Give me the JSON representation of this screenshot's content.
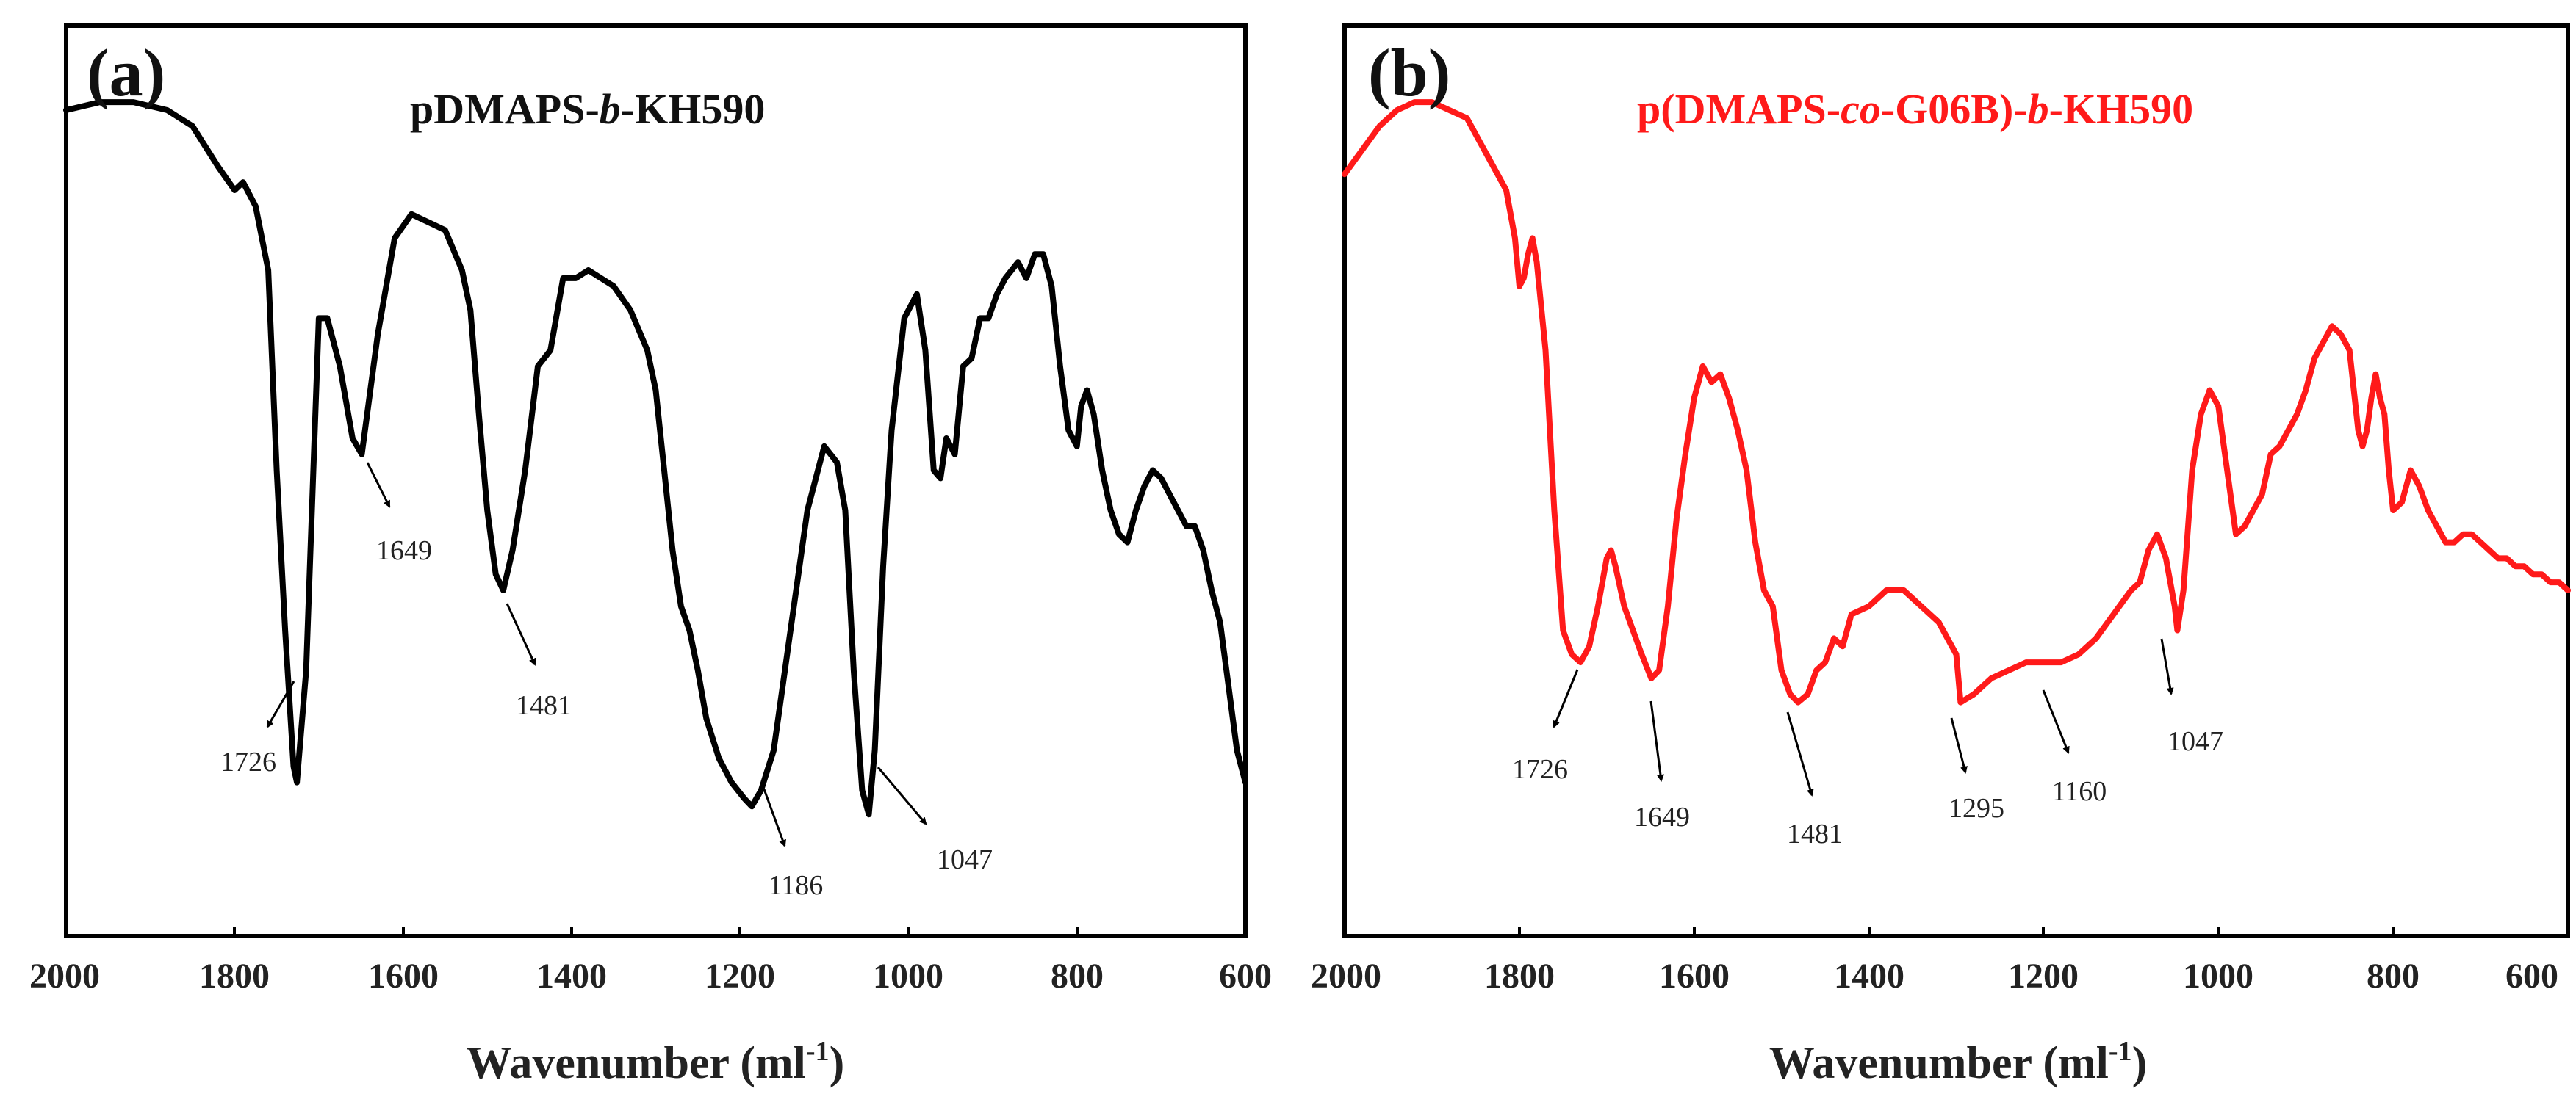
{
  "chart_data": [
    {
      "type": "line",
      "panel_label": "(a)",
      "title": {
        "pre": "pDMAPS-",
        "it": "b",
        "post": "-KH590"
      },
      "xlabel": "Wavenumber  (ml",
      "xlabel_sup": "-1",
      "xlabel_end": ")",
      "xlim": [
        2000,
        600
      ],
      "ylim": [
        0,
        100
      ],
      "x_ticks": [
        "2000",
        "1800",
        "1600",
        "1400",
        "1200",
        "1000",
        "800",
        "600"
      ],
      "color": "#000000",
      "series": [
        {
          "name": "pDMAPS-b-KH590",
          "x": [
            2000,
            1960,
            1920,
            1880,
            1850,
            1820,
            1800,
            1790,
            1775,
            1760,
            1750,
            1740,
            1730,
            1726,
            1715,
            1700,
            1690,
            1675,
            1660,
            1649,
            1630,
            1610,
            1590,
            1570,
            1550,
            1530,
            1520,
            1510,
            1500,
            1490,
            1481,
            1470,
            1455,
            1440,
            1425,
            1410,
            1395,
            1380,
            1365,
            1350,
            1330,
            1310,
            1300,
            1290,
            1280,
            1270,
            1260,
            1250,
            1240,
            1225,
            1210,
            1195,
            1186,
            1175,
            1160,
            1140,
            1120,
            1100,
            1085,
            1075,
            1065,
            1055,
            1047,
            1040,
            1030,
            1020,
            1005,
            990,
            980,
            970,
            962,
            955,
            945,
            935,
            925,
            915,
            905,
            895,
            885,
            870,
            860,
            850,
            840,
            830,
            820,
            810,
            800,
            795,
            788,
            780,
            770,
            760,
            750,
            740,
            730,
            720,
            710,
            700,
            690,
            680,
            670,
            660,
            650,
            640,
            630,
            620,
            610,
            600
          ],
          "y": [
            100,
            101,
            101,
            100,
            98,
            93,
            90,
            91,
            88,
            80,
            55,
            35,
            18,
            16,
            30,
            74,
            74,
            68,
            59,
            57,
            72,
            84,
            87,
            86,
            85,
            80,
            75,
            62,
            50,
            42,
            40,
            45,
            55,
            68,
            70,
            79,
            79,
            80,
            79,
            78,
            75,
            70,
            65,
            55,
            45,
            38,
            35,
            30,
            24,
            19,
            16,
            14,
            13,
            15,
            20,
            35,
            50,
            58,
            56,
            50,
            30,
            15,
            12,
            20,
            43,
            60,
            74,
            77,
            70,
            55,
            54,
            59,
            57,
            68,
            69,
            74,
            74,
            77,
            79,
            81,
            79,
            82,
            82,
            78,
            68,
            60,
            58,
            63,
            65,
            62,
            55,
            50,
            47,
            46,
            50,
            53,
            55,
            54,
            52,
            50,
            48,
            48,
            45,
            40,
            36,
            28,
            20,
            16
          ]
        }
      ],
      "annotations": [
        "1726",
        "1649",
        "1481",
        "1186",
        "1047"
      ]
    },
    {
      "type": "line",
      "panel_label": "(b)",
      "title": {
        "pre": "p(DMAPS-",
        "it1": "co",
        "mid": "-G06B)-",
        "it2": "b",
        "post": "-KH590"
      },
      "xlabel": "Wavenumber  (ml",
      "xlabel_sup": "-1",
      "xlabel_end": ")",
      "xlim": [
        2000,
        600
      ],
      "ylim": [
        0,
        100
      ],
      "x_ticks": [
        "2000",
        "1800",
        "1600",
        "1400",
        "1200",
        "1000",
        "800",
        "600"
      ],
      "color": "#ff1a1a",
      "series": [
        {
          "name": "p(DMAPS-co-G06B)-b-KH590",
          "x": [
            2000,
            1980,
            1960,
            1940,
            1920,
            1900,
            1880,
            1860,
            1845,
            1830,
            1815,
            1805,
            1800,
            1795,
            1790,
            1785,
            1780,
            1770,
            1760,
            1750,
            1740,
            1730,
            1720,
            1710,
            1700,
            1695,
            1690,
            1680,
            1670,
            1660,
            1649,
            1640,
            1630,
            1620,
            1610,
            1600,
            1590,
            1580,
            1570,
            1560,
            1550,
            1540,
            1530,
            1520,
            1510,
            1500,
            1490,
            1481,
            1470,
            1460,
            1450,
            1440,
            1430,
            1420,
            1400,
            1380,
            1360,
            1340,
            1320,
            1300,
            1295,
            1280,
            1260,
            1240,
            1220,
            1200,
            1180,
            1160,
            1140,
            1120,
            1100,
            1090,
            1080,
            1070,
            1060,
            1050,
            1047,
            1040,
            1030,
            1020,
            1010,
            1000,
            990,
            980,
            970,
            960,
            950,
            940,
            930,
            920,
            910,
            900,
            890,
            880,
            870,
            860,
            850,
            840,
            835,
            830,
            825,
            820,
            815,
            810,
            805,
            800,
            790,
            780,
            770,
            760,
            750,
            740,
            730,
            720,
            710,
            700,
            690,
            680,
            670,
            660,
            650,
            640,
            630,
            620,
            610,
            600
          ],
          "y": [
            92,
            95,
            98,
            100,
            101,
            101,
            100,
            99,
            96,
            93,
            90,
            84,
            78,
            79,
            82,
            84,
            81,
            70,
            50,
            35,
            32,
            31,
            33,
            38,
            44,
            45,
            43,
            38,
            35,
            32,
            29,
            30,
            38,
            49,
            57,
            64,
            68,
            66,
            67,
            64,
            60,
            55,
            46,
            40,
            38,
            30,
            27,
            26,
            27,
            30,
            31,
            34,
            33,
            37,
            38,
            40,
            40,
            38,
            36,
            32,
            26,
            27,
            29,
            30,
            31,
            31,
            31,
            32,
            34,
            37,
            40,
            41,
            45,
            47,
            44,
            38,
            35,
            40,
            55,
            62,
            65,
            63,
            55,
            47,
            48,
            50,
            52,
            57,
            58,
            60,
            62,
            65,
            69,
            71,
            73,
            72,
            70,
            60,
            58,
            60,
            64,
            67,
            64,
            62,
            55,
            50,
            51,
            55,
            53,
            50,
            48,
            46,
            46,
            47,
            47,
            46,
            45,
            44,
            44,
            43,
            43,
            42,
            42,
            41,
            41,
            40
          ]
        }
      ],
      "annotations": [
        "1726",
        "1649",
        "1481",
        "1295",
        "1160",
        "1047"
      ]
    }
  ]
}
